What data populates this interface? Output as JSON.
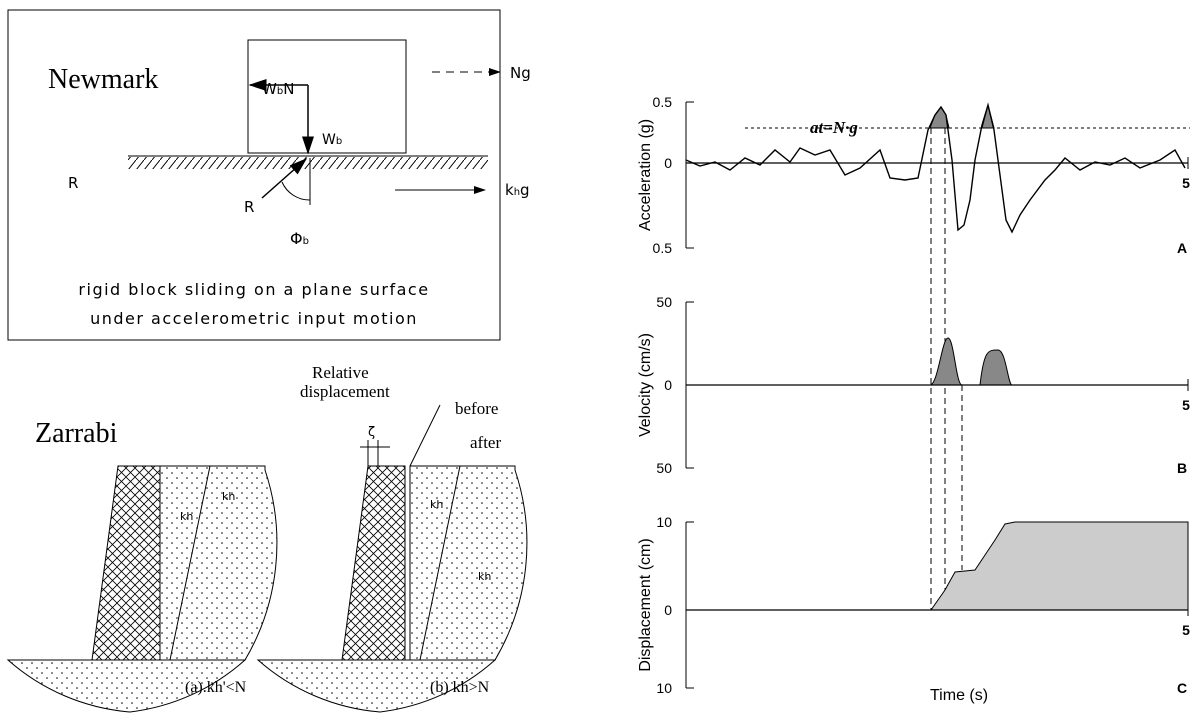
{
  "newmark": {
    "title": "Newmark",
    "wbn": {
      "base": "W",
      "sub": "b",
      "rest": "N"
    },
    "ng": "Ng",
    "wb": {
      "base": "W",
      "sub": "b"
    },
    "r_left": "R",
    "r_arrow": "R",
    "phi": {
      "base": "Φ",
      "sub": "b"
    },
    "khg": {
      "base": "k",
      "sub": "h",
      "rest": "g"
    },
    "caption": [
      "rigid block sliding on a plane surface",
      "under accelerometric input motion"
    ]
  },
  "zarrabi": {
    "title": "Zarrabi",
    "relative": [
      "Relative",
      "displacement"
    ],
    "before": "before",
    "after": "after",
    "zeta": "ζ",
    "label_a": "(a).kh'<N",
    "label_b": "(b) kh>N",
    "kh": "kh"
  },
  "plots": {
    "xlabel": "Time (s)",
    "annotation": "at=N·g",
    "panels": [
      {
        "ylabel": "Acceleration (g)",
        "yticks": [
          "0.5",
          "0",
          "0.5"
        ],
        "xtick": "5",
        "letter": "A"
      },
      {
        "ylabel": "Velocity (cm/s)",
        "yticks": [
          "50",
          "0",
          "50"
        ],
        "xtick": "5",
        "letter": "B"
      },
      {
        "ylabel": "Displacement (cm)",
        "yticks": [
          "10",
          "0",
          "10"
        ],
        "xtick": "5",
        "letter": "C"
      }
    ]
  }
}
